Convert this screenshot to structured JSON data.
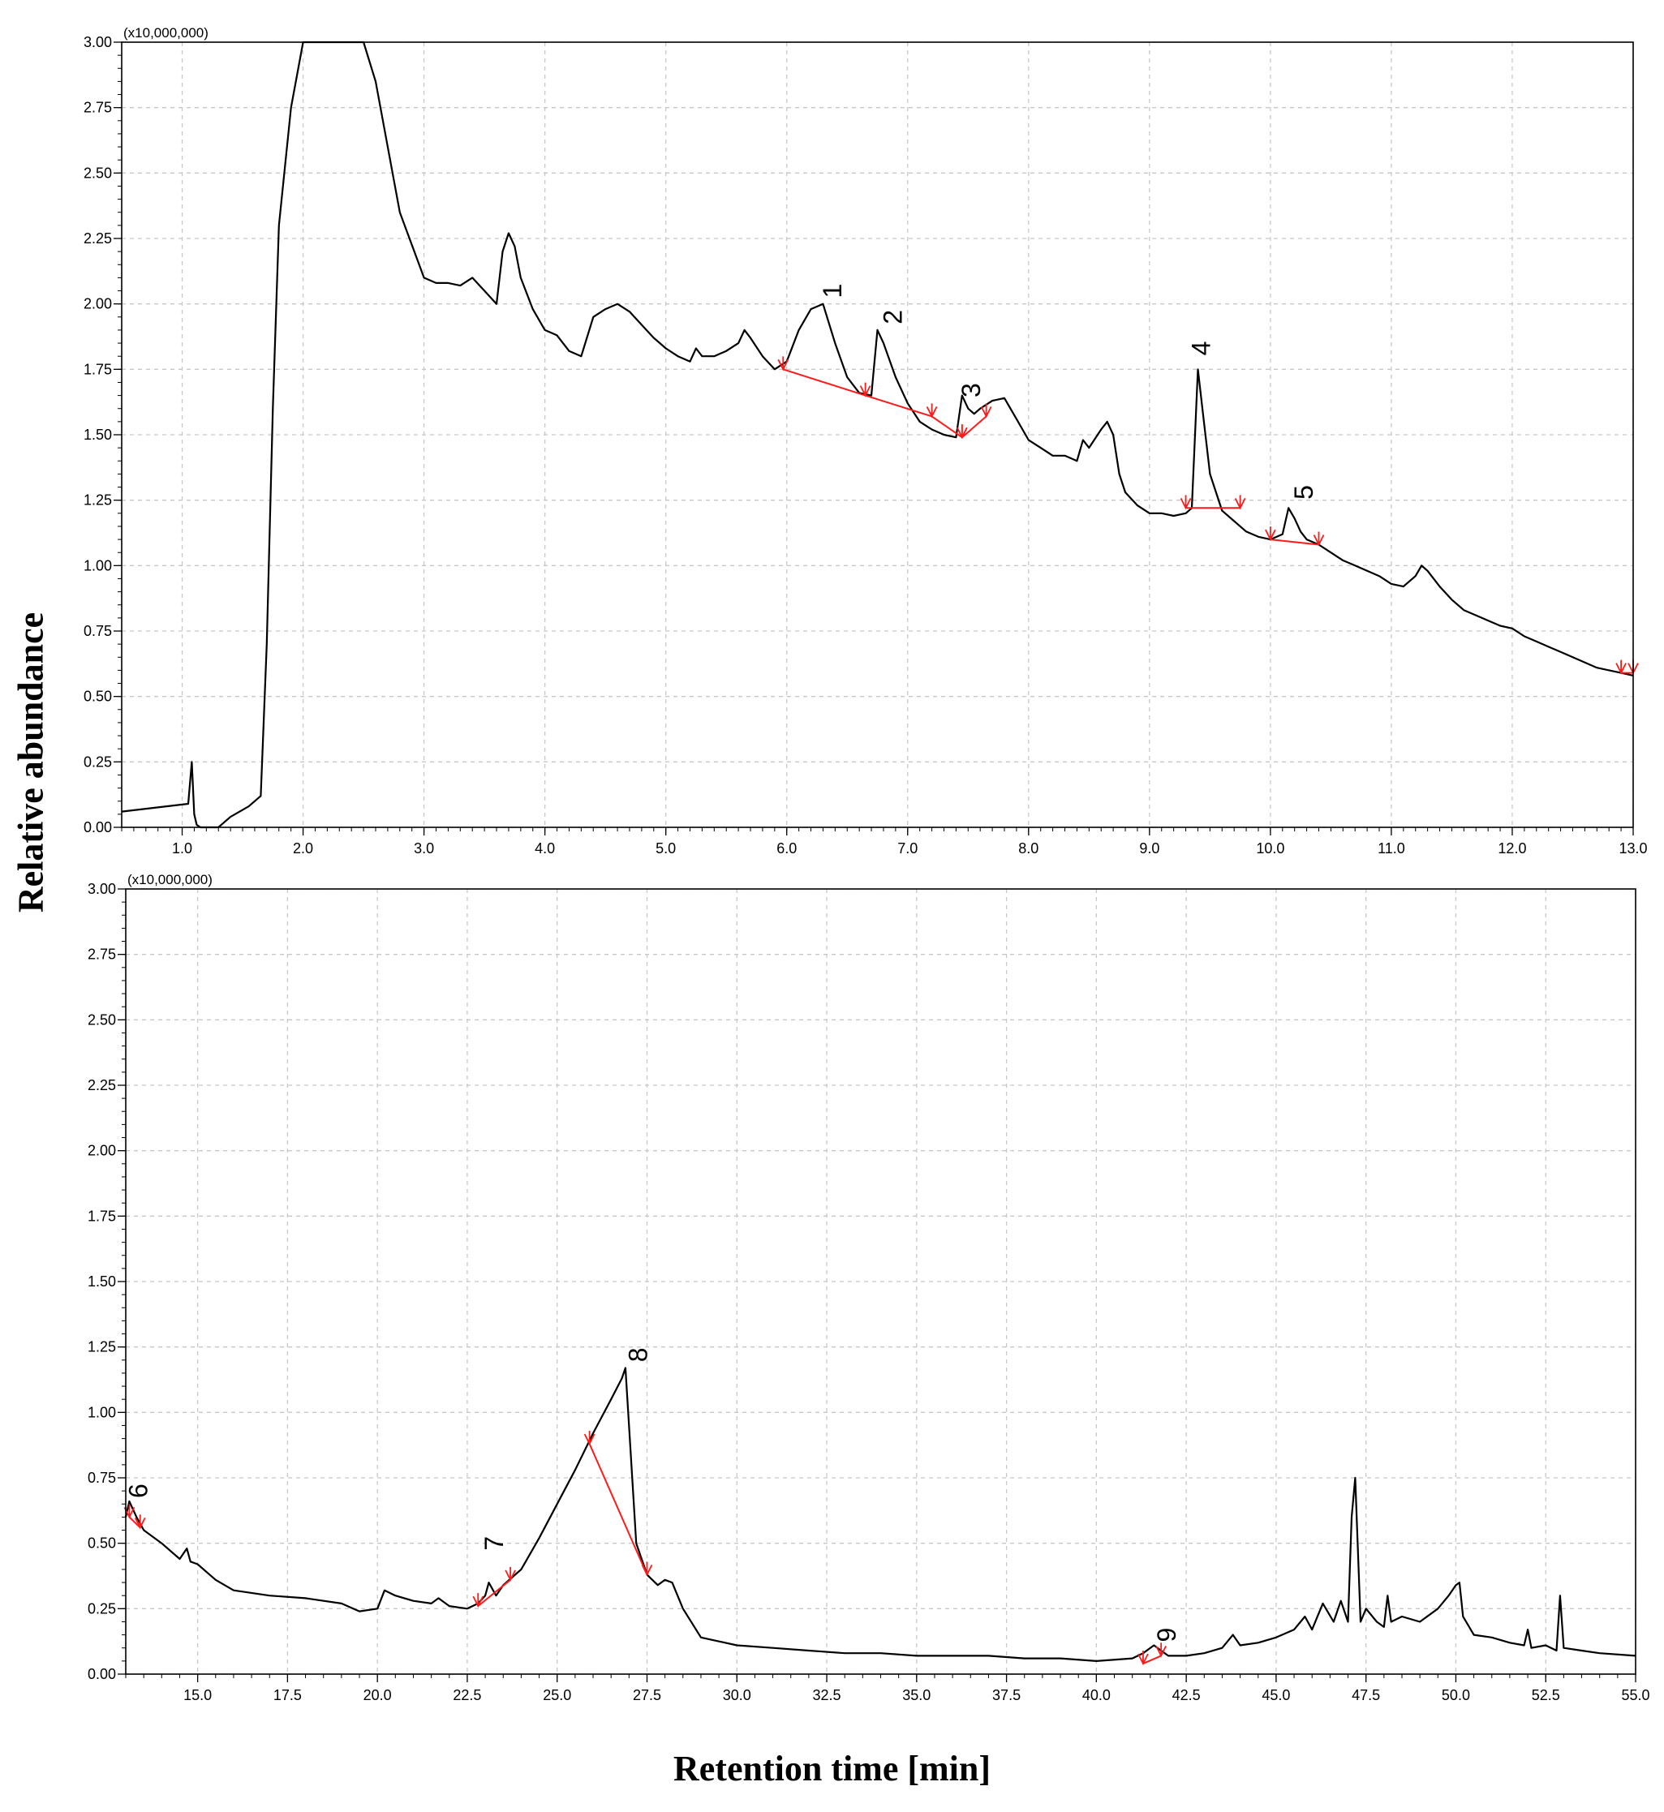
{
  "figure": {
    "ylabel": "Relative abundance",
    "xlabel": "Retention time [min]"
  },
  "chart_data": [
    {
      "type": "line",
      "panel": "top",
      "multiplier_label": "(x10,000,000)",
      "xlim": [
        0.5,
        13.0
      ],
      "ylim": [
        0,
        3.0
      ],
      "xticks": [
        "1.0",
        "2.0",
        "3.0",
        "4.0",
        "5.0",
        "6.0",
        "7.0",
        "8.0",
        "9.0",
        "10.0",
        "11.0",
        "12.0",
        "13.0"
      ],
      "yticks": [
        "0.00",
        "0.25",
        "0.50",
        "0.75",
        "1.00",
        "1.25",
        "1.50",
        "1.75",
        "2.00",
        "2.25",
        "2.50",
        "2.75",
        "3.00"
      ],
      "grid": true,
      "series": [
        {
          "color": "#000000",
          "x": [
            0.5,
            1.05,
            1.08,
            1.1,
            1.12,
            1.15,
            1.3,
            1.4,
            1.55,
            1.65,
            1.7,
            1.75,
            1.8,
            1.9,
            2.0,
            2.1,
            2.2,
            2.3,
            2.4,
            2.5,
            2.6,
            2.7,
            2.8,
            3.0,
            3.1,
            3.2,
            3.3,
            3.4,
            3.5,
            3.6,
            3.65,
            3.7,
            3.75,
            3.8,
            3.9,
            4.0,
            4.1,
            4.2,
            4.3,
            4.4,
            4.5,
            4.6,
            4.7,
            4.8,
            4.9,
            5.0,
            5.1,
            5.2,
            5.25,
            5.3,
            5.4,
            5.5,
            5.6,
            5.65,
            5.7,
            5.8,
            5.9,
            6.0,
            6.1,
            6.2,
            6.3,
            6.4,
            6.5,
            6.6,
            6.7,
            6.75,
            6.8,
            6.9,
            7.0,
            7.1,
            7.2,
            7.3,
            7.4,
            7.45,
            7.5,
            7.55,
            7.6,
            7.7,
            7.8,
            7.9,
            8.0,
            8.1,
            8.2,
            8.3,
            8.4,
            8.45,
            8.5,
            8.6,
            8.65,
            8.7,
            8.75,
            8.8,
            8.9,
            9.0,
            9.1,
            9.2,
            9.3,
            9.35,
            9.4,
            9.45,
            9.5,
            9.6,
            9.7,
            9.8,
            9.9,
            10.0,
            10.1,
            10.15,
            10.2,
            10.25,
            10.3,
            10.35,
            10.4,
            10.5,
            10.6,
            10.7,
            10.8,
            10.9,
            11.0,
            11.1,
            11.2,
            11.25,
            11.3,
            11.4,
            11.5,
            11.6,
            11.7,
            11.8,
            11.9,
            12.0,
            12.1,
            12.2,
            12.3,
            12.4,
            12.5,
            12.6,
            12.7,
            12.8,
            12.9,
            13.0
          ],
          "y": [
            0.06,
            0.09,
            0.25,
            0.05,
            0.01,
            0.0,
            0.0,
            0.04,
            0.08,
            0.12,
            0.7,
            1.6,
            2.3,
            2.75,
            3.0,
            3.0,
            3.0,
            3.0,
            3.0,
            3.0,
            2.85,
            2.6,
            2.35,
            2.1,
            2.08,
            2.08,
            2.07,
            2.1,
            2.05,
            2.0,
            2.2,
            2.27,
            2.22,
            2.1,
            1.98,
            1.9,
            1.88,
            1.82,
            1.8,
            1.95,
            1.98,
            2.0,
            1.97,
            1.92,
            1.87,
            1.83,
            1.8,
            1.78,
            1.83,
            1.8,
            1.8,
            1.82,
            1.85,
            1.9,
            1.87,
            1.8,
            1.75,
            1.78,
            1.9,
            1.98,
            2.0,
            1.85,
            1.72,
            1.66,
            1.65,
            1.9,
            1.85,
            1.72,
            1.62,
            1.55,
            1.52,
            1.5,
            1.49,
            1.65,
            1.6,
            1.58,
            1.6,
            1.63,
            1.64,
            1.56,
            1.48,
            1.45,
            1.42,
            1.42,
            1.4,
            1.48,
            1.45,
            1.52,
            1.55,
            1.5,
            1.35,
            1.28,
            1.23,
            1.2,
            1.2,
            1.19,
            1.2,
            1.22,
            1.75,
            1.55,
            1.35,
            1.21,
            1.17,
            1.13,
            1.11,
            1.1,
            1.12,
            1.22,
            1.18,
            1.13,
            1.1,
            1.09,
            1.08,
            1.05,
            1.02,
            1.0,
            0.98,
            0.96,
            0.93,
            0.92,
            0.96,
            1.0,
            0.98,
            0.92,
            0.87,
            0.83,
            0.81,
            0.79,
            0.77,
            0.76,
            0.73,
            0.71,
            0.69,
            0.67,
            0.65,
            0.63,
            0.61,
            0.6,
            0.59,
            0.58
          ]
        }
      ],
      "integration_marks": [
        {
          "x": [
            5.97,
            6.65,
            7.2,
            7.45
          ],
          "y": [
            1.75,
            1.65,
            1.57,
            1.49
          ]
        },
        {
          "x": [
            7.45,
            7.65
          ],
          "y": [
            1.49,
            1.57
          ]
        },
        {
          "x": [
            9.3,
            9.75
          ],
          "y": [
            1.22,
            1.22
          ]
        },
        {
          "x": [
            10.0,
            10.4
          ],
          "y": [
            1.1,
            1.08
          ]
        }
      ],
      "peak_labels": [
        {
          "text": "1",
          "x": 6.45,
          "y": 2.05
        },
        {
          "text": "2",
          "x": 6.95,
          "y": 1.95
        },
        {
          "text": "3",
          "x": 7.6,
          "y": 1.67
        },
        {
          "text": "4",
          "x": 9.5,
          "y": 1.83
        },
        {
          "text": "5",
          "x": 10.35,
          "y": 1.28
        }
      ],
      "edge_marks": [
        {
          "x": [
            12.9,
            13.0
          ],
          "y": [
            0.59,
            0.59
          ]
        }
      ]
    },
    {
      "type": "line",
      "panel": "bottom",
      "multiplier_label": "(x10,000,000)",
      "xlim": [
        13.0,
        55.0
      ],
      "ylim": [
        0,
        3.0
      ],
      "xticks": [
        "15.0",
        "17.5",
        "20.0",
        "22.5",
        "25.0",
        "27.5",
        "30.0",
        "32.5",
        "35.0",
        "37.5",
        "40.0",
        "42.5",
        "45.0",
        "47.5",
        "50.0",
        "52.5",
        "55.0"
      ],
      "yticks": [
        "0.00",
        "0.25",
        "0.50",
        "0.75",
        "1.00",
        "1.25",
        "1.50",
        "1.75",
        "2.00",
        "2.25",
        "2.50",
        "2.75",
        "3.00"
      ],
      "grid": true,
      "series": [
        {
          "color": "#000000",
          "x": [
            13.0,
            13.1,
            13.3,
            13.5,
            14.0,
            14.5,
            14.7,
            14.8,
            15.0,
            15.5,
            16.0,
            17.0,
            18.0,
            19.0,
            19.5,
            20.0,
            20.2,
            20.5,
            21.0,
            21.5,
            21.7,
            22.0,
            22.5,
            22.8,
            23.0,
            23.1,
            23.3,
            23.5,
            24.0,
            24.5,
            25.0,
            25.5,
            26.0,
            26.5,
            26.8,
            26.9,
            27.0,
            27.2,
            27.5,
            27.8,
            28.0,
            28.2,
            28.5,
            29.0,
            30.0,
            31.0,
            32.0,
            33.0,
            34.0,
            35.0,
            36.0,
            37.0,
            38.0,
            39.0,
            40.0,
            41.0,
            41.3,
            41.6,
            41.8,
            42.0,
            42.5,
            43.0,
            43.5,
            43.8,
            44.0,
            44.5,
            45.0,
            45.5,
            45.8,
            46.0,
            46.3,
            46.6,
            46.8,
            47.0,
            47.1,
            47.2,
            47.35,
            47.5,
            47.8,
            48.0,
            48.1,
            48.2,
            48.5,
            49.0,
            49.5,
            49.8,
            50.0,
            50.1,
            50.2,
            50.5,
            51.0,
            51.5,
            51.9,
            52.0,
            52.1,
            52.5,
            52.8,
            52.9,
            53.0,
            53.5,
            54.0,
            55.0
          ],
          "y": [
            0.6,
            0.66,
            0.6,
            0.55,
            0.5,
            0.44,
            0.48,
            0.43,
            0.42,
            0.36,
            0.32,
            0.3,
            0.29,
            0.27,
            0.24,
            0.25,
            0.32,
            0.3,
            0.28,
            0.27,
            0.29,
            0.26,
            0.25,
            0.27,
            0.3,
            0.35,
            0.3,
            0.34,
            0.4,
            0.52,
            0.65,
            0.78,
            0.92,
            1.05,
            1.13,
            1.17,
            0.95,
            0.5,
            0.38,
            0.34,
            0.36,
            0.35,
            0.25,
            0.14,
            0.11,
            0.1,
            0.09,
            0.08,
            0.08,
            0.07,
            0.07,
            0.07,
            0.06,
            0.06,
            0.05,
            0.06,
            0.08,
            0.11,
            0.09,
            0.07,
            0.07,
            0.08,
            0.1,
            0.15,
            0.11,
            0.12,
            0.14,
            0.17,
            0.22,
            0.17,
            0.27,
            0.2,
            0.28,
            0.2,
            0.6,
            0.75,
            0.2,
            0.25,
            0.2,
            0.18,
            0.3,
            0.2,
            0.22,
            0.2,
            0.25,
            0.3,
            0.34,
            0.35,
            0.22,
            0.15,
            0.14,
            0.12,
            0.11,
            0.17,
            0.1,
            0.11,
            0.09,
            0.3,
            0.1,
            0.09,
            0.08,
            0.07
          ]
        }
      ],
      "integration_marks": [
        {
          "x": [
            22.8,
            23.7
          ],
          "y": [
            0.26,
            0.36
          ]
        },
        {
          "x": [
            25.9,
            27.5
          ],
          "y": [
            0.88,
            0.38
          ]
        },
        {
          "x": [
            41.3,
            41.8
          ],
          "y": [
            0.04,
            0.07
          ]
        }
      ],
      "peak_labels": [
        {
          "text": "6",
          "x": 13.6,
          "y": 0.7
        },
        {
          "text": "7",
          "x": 23.5,
          "y": 0.5
        },
        {
          "text": "8",
          "x": 27.5,
          "y": 1.22
        },
        {
          "text": "9",
          "x": 42.2,
          "y": 0.15
        }
      ],
      "edge_marks": [
        {
          "x": [
            13.1,
            13.4
          ],
          "y": [
            0.6,
            0.56
          ]
        }
      ]
    }
  ]
}
